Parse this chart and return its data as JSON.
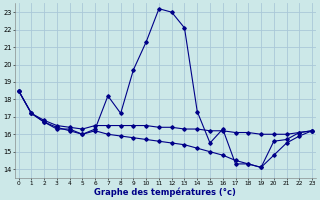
{
  "title": "Graphe des températures (°c)",
  "background_color": "#cce8e8",
  "grid_color": "#aac8d8",
  "line_color": "#000088",
  "xlim": [
    -0.3,
    23.3
  ],
  "ylim": [
    13.5,
    23.5
  ],
  "yticks": [
    14,
    15,
    16,
    17,
    18,
    19,
    20,
    21,
    22,
    23
  ],
  "xticks": [
    0,
    1,
    2,
    3,
    4,
    5,
    6,
    7,
    8,
    9,
    10,
    11,
    12,
    13,
    14,
    15,
    16,
    17,
    18,
    19,
    20,
    21,
    22,
    23
  ],
  "series1_x": [
    0,
    1,
    2,
    3,
    4,
    5,
    6,
    7,
    8,
    9,
    10,
    11,
    12,
    13,
    14,
    15,
    16,
    17,
    18,
    19,
    20,
    21,
    22,
    23
  ],
  "series1_y": [
    18.5,
    17.2,
    16.7,
    16.3,
    16.3,
    16.0,
    16.3,
    18.2,
    17.2,
    19.7,
    21.3,
    23.2,
    23.0,
    22.1,
    17.3,
    15.5,
    16.3,
    14.3,
    14.3,
    14.1,
    15.6,
    15.7,
    16.1,
    16.2
  ],
  "series2_x": [
    0,
    1,
    2,
    3,
    4,
    5,
    6,
    7,
    8,
    9,
    10,
    11,
    12,
    13,
    14,
    15,
    16,
    17,
    18,
    19,
    20,
    21,
    22,
    23
  ],
  "series2_y": [
    18.5,
    17.2,
    16.8,
    16.5,
    16.4,
    16.3,
    16.5,
    16.5,
    16.5,
    16.5,
    16.5,
    16.4,
    16.4,
    16.3,
    16.3,
    16.2,
    16.2,
    16.1,
    16.1,
    16.0,
    16.0,
    16.0,
    16.1,
    16.2
  ],
  "series3_x": [
    0,
    1,
    2,
    3,
    4,
    5,
    6,
    7,
    8,
    9,
    10,
    11,
    12,
    13,
    14,
    15,
    16,
    17,
    18,
    19,
    20,
    21,
    22,
    23
  ],
  "series3_y": [
    18.5,
    17.2,
    16.7,
    16.4,
    16.2,
    16.0,
    16.2,
    16.0,
    15.9,
    15.8,
    15.7,
    15.6,
    15.5,
    15.4,
    15.2,
    15.0,
    14.8,
    14.5,
    14.3,
    14.1,
    14.8,
    15.5,
    15.9,
    16.2
  ]
}
